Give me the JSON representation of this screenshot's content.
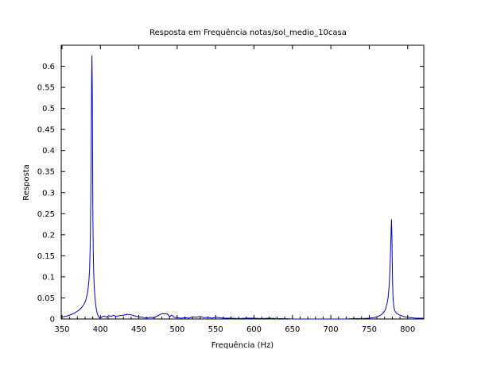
{
  "chart_data": {
    "type": "line",
    "title": "Resposta em Frequência notas/sol_medio_10casa",
    "xlabel": "Frequência (Hz)",
    "ylabel": "Resposta",
    "xlim": [
      349,
      821
    ],
    "ylim": [
      0,
      0.65
    ],
    "xticks": [
      350,
      400,
      450,
      500,
      550,
      600,
      650,
      700,
      750,
      800
    ],
    "yticks": [
      0,
      0.05,
      0.1,
      0.15,
      0.2,
      0.25,
      0.3,
      0.35,
      0.4,
      0.45,
      0.5,
      0.55,
      0.6
    ],
    "grid": false,
    "legend": "none",
    "series": [
      {
        "color": "#0000cc",
        "x": [
          349,
          352,
          356,
          360,
          364,
          368,
          372,
          376,
          379,
          381,
          383,
          384,
          385,
          386,
          387,
          387.6,
          388.2,
          388.6,
          389,
          389.4,
          389.8,
          390.2,
          390.7,
          391.3,
          392,
          393,
          394,
          395,
          396,
          397,
          398,
          400,
          402,
          405,
          408,
          411,
          414,
          417,
          420,
          425,
          430,
          435,
          440,
          445,
          450,
          455,
          460,
          465,
          470,
          475,
          478,
          481,
          484,
          487,
          490,
          493,
          496,
          500,
          505,
          510,
          515,
          520,
          525,
          530,
          535,
          540,
          545,
          550,
          555,
          560,
          570,
          580,
          590,
          600,
          610,
          620,
          630,
          640,
          650,
          660,
          680,
          700,
          720,
          730,
          740,
          750,
          755,
          758,
          761,
          764,
          767,
          769,
          771,
          773,
          774.5,
          776,
          777,
          778,
          778.5,
          779,
          779.5,
          780,
          780.5,
          781,
          782,
          783,
          784.5,
          786,
          788,
          790,
          793,
          796,
          800,
          805,
          810,
          815,
          821
        ],
        "y": [
          0.004,
          0.005,
          0.007,
          0.009,
          0.012,
          0.016,
          0.021,
          0.028,
          0.036,
          0.045,
          0.06,
          0.072,
          0.09,
          0.12,
          0.2,
          0.31,
          0.46,
          0.565,
          0.625,
          0.555,
          0.4,
          0.25,
          0.16,
          0.11,
          0.075,
          0.05,
          0.032,
          0.02,
          0.012,
          0.008,
          0.004,
          0.002,
          0.005,
          0.007,
          0.004,
          0.008,
          0.006,
          0.009,
          0.006,
          0.008,
          0.009,
          0.011,
          0.01,
          0.007,
          0.005,
          0.004,
          0.002,
          0.004,
          0.003,
          0.008,
          0.011,
          0.013,
          0.012,
          0.012,
          0.006,
          0.009,
          0.004,
          0.003,
          0.002,
          0.003,
          0.002,
          0.005,
          0.004,
          0.006,
          0.003,
          0.004,
          0.002,
          0.004,
          0.003,
          0.002,
          0.002,
          0.001,
          0.002,
          0.002,
          0.001,
          0.002,
          0.001,
          0.001,
          0.0,
          0.0,
          0.0,
          0.0,
          0.0,
          0.001,
          0.001,
          0.002,
          0.003,
          0.004,
          0.006,
          0.008,
          0.012,
          0.016,
          0.022,
          0.035,
          0.05,
          0.08,
          0.12,
          0.18,
          0.21,
          0.236,
          0.2,
          0.13,
          0.08,
          0.05,
          0.03,
          0.02,
          0.016,
          0.013,
          0.011,
          0.009,
          0.007,
          0.005,
          0.004,
          0.003,
          0.002,
          0.002,
          0.002
        ]
      }
    ]
  }
}
